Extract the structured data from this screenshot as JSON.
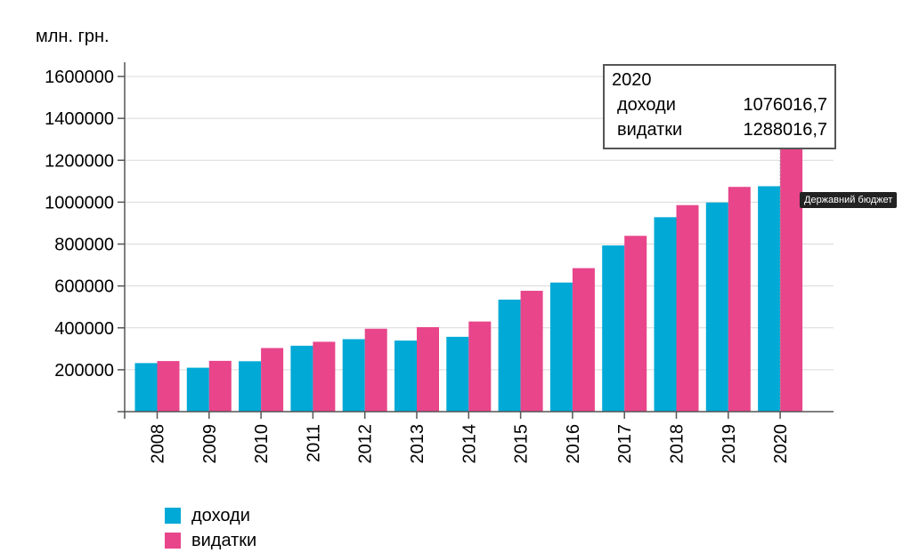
{
  "chart_data": {
    "type": "bar",
    "ylabel": "млн. грн.",
    "ylim": [
      0,
      1700000
    ],
    "yticks": [
      200000,
      400000,
      600000,
      800000,
      1000000,
      1200000,
      1400000,
      1600000
    ],
    "grid": true,
    "legend_position": "bottom-left",
    "categories": [
      "2008",
      "2009",
      "2010",
      "2011",
      "2012",
      "2013",
      "2014",
      "2015",
      "2016",
      "2017",
      "2018",
      "2019",
      "2020"
    ],
    "series": [
      {
        "name": "доходи",
        "color": "#00a9d6",
        "values": [
          231700,
          209700,
          240600,
          314600,
          346000,
          339200,
          357100,
          534700,
          616300,
          793400,
          928100,
          998300,
          1076016.7
        ]
      },
      {
        "name": "видатки",
        "color": "#e8458b",
        "values": [
          241500,
          242400,
          303600,
          333500,
          395700,
          403400,
          430200,
          576900,
          684900,
          839200,
          985800,
          1072800,
          1288016.7
        ]
      }
    ]
  },
  "tooltip": {
    "year": "2020",
    "rows": [
      {
        "label": "доходи",
        "value": "1076016,7"
      },
      {
        "label": "видатки",
        "value": "1288016,7"
      }
    ]
  },
  "hover_badge": "Державний бюджет"
}
